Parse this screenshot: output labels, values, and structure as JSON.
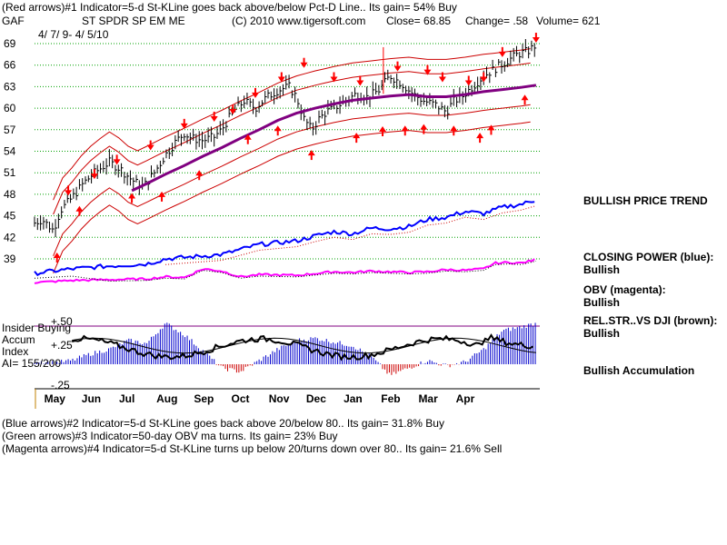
{
  "header": {
    "line1": "(Red arrows)#1 Indicator=5-d St-KLine goes back above/below Pct-D Line.. Its gain= 54% Buy",
    "symbol": "GAF",
    "name": "ST SPDR SP EM ME",
    "copyright": "(C) 2010 www.tigersoft.com",
    "close": "Close= 68.85",
    "change": "Change= .58",
    "volume": "Volume= 621",
    "dates": "4/ 7/ 9- 4/ 5/10"
  },
  "right_labels": {
    "trend": "BULLISH PRICE TREND",
    "closing_power": "CLOSING POWER (blue):",
    "closing_power_val": "Bullish",
    "obv": "OBV (magenta):",
    "obv_val": "Bullish",
    "relstr": "REL.STR..VS DJI (brown):",
    "relstr_val": "Bullish",
    "accum": "Bullish Accumulation"
  },
  "lower_panel": {
    "insider": "Insider Buying",
    "accum": "Accum",
    "index": "Index",
    "ai": "AI= 155/200",
    "plus50": "+.50",
    "plus25": "+.25",
    "minus25": "-.25"
  },
  "footer": {
    "line1": "(Blue arrows)#2 Indicator=5-d St-KLine goes back above 20/below 80.. Its gain= 31.8% Buy",
    "line2": "(Green arrows)#3 Indicator=50-day OBV ma turns. Its gain= 23% Buy",
    "line3": "(Magenta arrows)#4 Indicator=5-d St-KLine turns up below 20/turns down over 80.. Its gain= 21.6% Sell"
  },
  "chart_data": {
    "type": "line",
    "y_ticks": [
      69,
      66,
      63,
      60,
      57,
      54,
      51,
      48,
      45,
      42,
      39
    ],
    "ylim": [
      37,
      70
    ],
    "x_ticks": [
      "May",
      "Jun",
      "Jul",
      "Aug",
      "Sep",
      "Oct",
      "Nov",
      "Dec",
      "Jan",
      "Feb",
      "Mar",
      "Apr"
    ],
    "grid": true,
    "colors": {
      "price": "#000000",
      "bands": "#cc0000",
      "ma": "#800080",
      "closing_power": "#0000ff",
      "obv": "#ff00ff",
      "accum_pos": "#0000cc",
      "accum_neg": "#cc0000",
      "grid": "#00a000"
    },
    "price_series": [
      [
        0.0,
        44.0
      ],
      [
        0.2,
        44.5
      ],
      [
        0.5,
        43.0
      ],
      [
        0.7,
        45.8
      ],
      [
        1.0,
        47.5
      ],
      [
        1.3,
        49.5
      ],
      [
        1.6,
        51.0
      ],
      [
        2.0,
        52.5
      ],
      [
        2.3,
        51.5
      ],
      [
        2.6,
        50.0
      ],
      [
        2.9,
        49.0
      ],
      [
        3.2,
        51.0
      ],
      [
        3.5,
        53.5
      ],
      [
        3.8,
        55.5
      ],
      [
        4.0,
        56.5
      ],
      [
        4.2,
        55.8
      ],
      [
        4.5,
        55.5
      ],
      [
        4.8,
        56.0
      ],
      [
        5.0,
        57.0
      ],
      [
        5.3,
        59.5
      ],
      [
        5.6,
        61.0
      ],
      [
        5.9,
        60.0
      ],
      [
        6.2,
        61.5
      ],
      [
        6.5,
        62.5
      ],
      [
        6.8,
        63.0
      ],
      [
        7.0,
        61.5
      ],
      [
        7.2,
        58.5
      ],
      [
        7.4,
        57.0
      ],
      [
        7.6,
        58.5
      ],
      [
        7.8,
        59.5
      ],
      [
        8.0,
        60.0
      ],
      [
        8.3,
        61.0
      ],
      [
        8.6,
        62.0
      ],
      [
        8.9,
        61.5
      ],
      [
        9.2,
        62.5
      ],
      [
        9.5,
        64.5
      ],
      [
        9.8,
        63.5
      ],
      [
        10.1,
        62.0
      ],
      [
        10.4,
        61.0
      ],
      [
        10.7,
        60.5
      ],
      [
        11.0,
        59.5
      ],
      [
        11.2,
        61.0
      ],
      [
        11.4,
        61.5
      ],
      [
        11.6,
        62.5
      ],
      [
        11.8,
        63.5
      ],
      [
        12.0,
        64.5
      ],
      [
        12.3,
        65.5
      ],
      [
        12.6,
        66.5
      ],
      [
        12.9,
        67.5
      ],
      [
        13.2,
        68.0
      ],
      [
        13.4,
        68.85
      ]
    ],
    "ma_series": [
      [
        2.6,
        48.5
      ],
      [
        3.0,
        49.5
      ],
      [
        3.5,
        50.8
      ],
      [
        4.0,
        52.0
      ],
      [
        4.5,
        53.3
      ],
      [
        5.0,
        54.5
      ],
      [
        5.5,
        55.8
      ],
      [
        6.0,
        57.0
      ],
      [
        6.5,
        58.3
      ],
      [
        7.0,
        59.3
      ],
      [
        7.5,
        60.0
      ],
      [
        8.0,
        60.6
      ],
      [
        8.5,
        61.1
      ],
      [
        9.0,
        61.4
      ],
      [
        9.5,
        61.7
      ],
      [
        10.0,
        61.9
      ],
      [
        10.5,
        61.6
      ],
      [
        11.0,
        61.6
      ],
      [
        11.5,
        61.9
      ],
      [
        12.0,
        62.3
      ],
      [
        12.5,
        62.6
      ],
      [
        13.0,
        62.9
      ],
      [
        13.4,
        63.2
      ]
    ],
    "closing_power": [
      [
        0.0,
        37.0
      ],
      [
        1.0,
        37.6
      ],
      [
        2.0,
        38.0
      ],
      [
        3.0,
        38.3
      ],
      [
        3.5,
        39.0
      ],
      [
        4.0,
        39.2
      ],
      [
        5.0,
        39.6
      ],
      [
        5.5,
        40.3
      ],
      [
        6.0,
        41.0
      ],
      [
        7.0,
        41.5
      ],
      [
        7.5,
        42.2
      ],
      [
        8.0,
        42.8
      ],
      [
        8.5,
        42.5
      ],
      [
        9.0,
        43.3
      ],
      [
        9.5,
        43.2
      ],
      [
        10.0,
        43.5
      ],
      [
        10.5,
        44.5
      ],
      [
        11.0,
        44.8
      ],
      [
        11.5,
        45.6
      ],
      [
        12.0,
        45.3
      ],
      [
        12.5,
        46.2
      ],
      [
        13.0,
        46.6
      ],
      [
        13.4,
        47.2
      ]
    ],
    "obv": [
      [
        0.0,
        35.7
      ],
      [
        1.0,
        36.0
      ],
      [
        2.0,
        36.1
      ],
      [
        3.0,
        36.2
      ],
      [
        3.5,
        36.5
      ],
      [
        4.0,
        36.4
      ],
      [
        4.5,
        37.6
      ],
      [
        5.0,
        37.3
      ],
      [
        5.5,
        36.5
      ],
      [
        6.0,
        36.8
      ],
      [
        7.0,
        36.7
      ],
      [
        8.0,
        37.2
      ],
      [
        8.5,
        37.1
      ],
      [
        9.0,
        37.3
      ],
      [
        10.0,
        37.1
      ],
      [
        10.5,
        37.2
      ],
      [
        11.0,
        37.5
      ],
      [
        11.5,
        37.4
      ],
      [
        12.0,
        37.6
      ],
      [
        12.3,
        38.4
      ],
      [
        12.7,
        38.5
      ],
      [
        13.0,
        38.4
      ],
      [
        13.4,
        38.9
      ]
    ],
    "accum_index": [
      [
        0.0,
        0.05
      ],
      [
        0.5,
        0.02
      ],
      [
        1.0,
        0.05
      ],
      [
        1.5,
        0.14
      ],
      [
        2.0,
        0.2
      ],
      [
        2.5,
        0.32
      ],
      [
        3.0,
        0.28
      ],
      [
        3.5,
        0.55
      ],
      [
        4.0,
        0.4
      ],
      [
        4.5,
        0.18
      ],
      [
        5.0,
        -0.05
      ],
      [
        5.5,
        -0.1
      ],
      [
        6.0,
        0.05
      ],
      [
        6.5,
        0.2
      ],
      [
        7.0,
        0.32
      ],
      [
        7.5,
        0.35
      ],
      [
        8.0,
        0.3
      ],
      [
        8.5,
        0.25
      ],
      [
        9.0,
        0.1
      ],
      [
        9.5,
        -0.15
      ],
      [
        10.0,
        -0.05
      ],
      [
        10.5,
        0.05
      ],
      [
        11.0,
        -0.02
      ],
      [
        11.5,
        0.03
      ],
      [
        12.0,
        0.2
      ],
      [
        12.5,
        0.45
      ],
      [
        13.0,
        0.5
      ],
      [
        13.4,
        0.55
      ]
    ]
  }
}
